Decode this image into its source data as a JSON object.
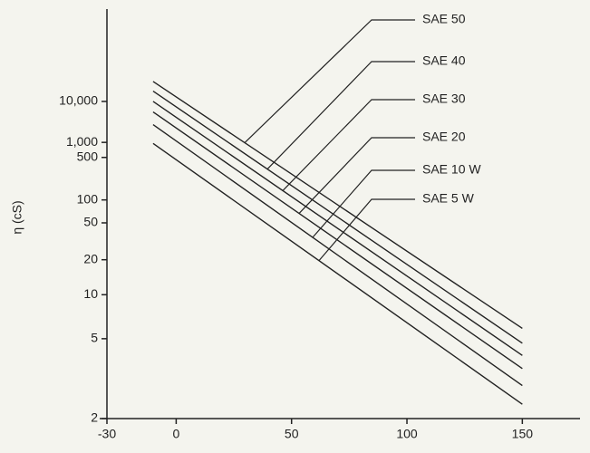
{
  "chart_data": {
    "type": "line",
    "y_label": "η (cS)",
    "y_scale": "log-log",
    "x": [
      -10,
      150
    ],
    "series": [
      {
        "name": "SAE 50",
        "color": "#222222",
        "values": [
          40000,
          5.8
        ]
      },
      {
        "name": "SAE 40",
        "color": "#222222",
        "values": [
          20000,
          4.7
        ]
      },
      {
        "name": "SAE 30",
        "color": "#222222",
        "values": [
          10000,
          4.0
        ]
      },
      {
        "name": "SAE 20",
        "color": "#222222",
        "values": [
          5200,
          3.4
        ]
      },
      {
        "name": "SAE 10 W",
        "color": "#222222",
        "values": [
          2500,
          2.8
        ]
      },
      {
        "name": "SAE 5 W",
        "color": "#222222",
        "values": [
          950,
          2.3
        ]
      }
    ],
    "xlim": [
      -30,
      175
    ],
    "xticks": [
      -30,
      0,
      50,
      100,
      150
    ],
    "ylim": [
      2,
      10000000
    ],
    "yticks": [
      {
        "value": 10000,
        "label": "10,000"
      },
      {
        "value": 1000,
        "label": "1,000"
      },
      500,
      100,
      50,
      20,
      10,
      5,
      2
    ]
  }
}
